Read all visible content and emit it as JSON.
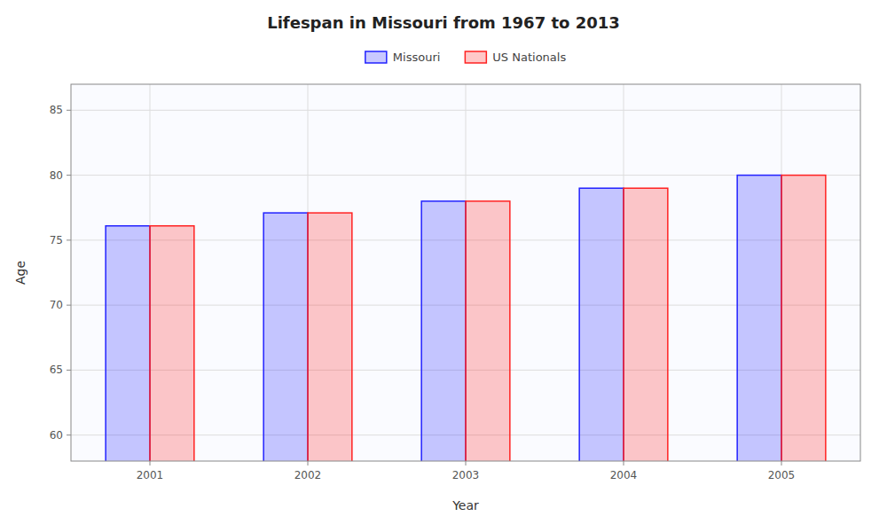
{
  "chart_data": {
    "type": "bar",
    "title": "Lifespan in Missouri from 1967 to 2013",
    "xlabel": "Year",
    "ylabel": "Age",
    "categories": [
      "2001",
      "2002",
      "2003",
      "2004",
      "2005"
    ],
    "series": [
      {
        "name": "Missouri",
        "color": "#2222ff",
        "values": [
          76.1,
          77.1,
          78.0,
          79.0,
          80.0
        ]
      },
      {
        "name": "US Nationals",
        "color": "#ff2222",
        "values": [
          76.1,
          77.1,
          78.0,
          79.0,
          80.0
        ]
      }
    ],
    "ylim": [
      58,
      87
    ],
    "yticks": [
      60,
      65,
      70,
      75,
      80,
      85
    ],
    "grid": true,
    "legend": "top"
  }
}
